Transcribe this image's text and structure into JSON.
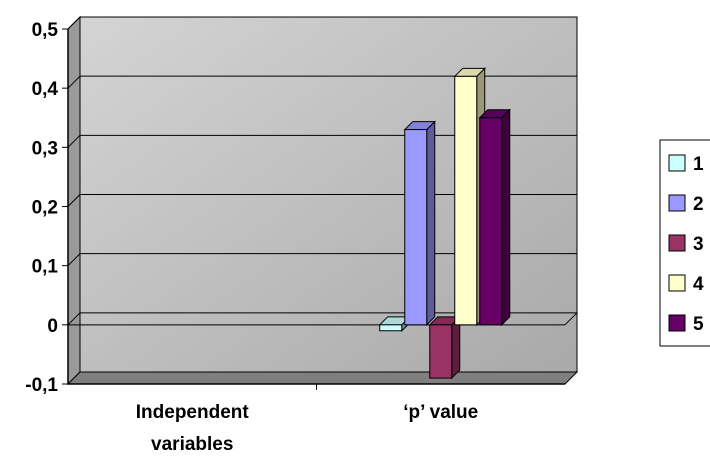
{
  "chart_data": {
    "type": "bar",
    "categories": [
      "Independent variables",
      "‘p’ value"
    ],
    "category_lines": [
      [
        "Independent",
        "variables"
      ],
      [
        "‘p’ value"
      ]
    ],
    "series": [
      {
        "name": "1",
        "values": [
          null,
          -0.01
        ],
        "color": "#ccffff"
      },
      {
        "name": "2",
        "values": [
          null,
          0.33
        ],
        "color": "#9999ff"
      },
      {
        "name": "3",
        "values": [
          null,
          -0.09
        ],
        "color": "#993366"
      },
      {
        "name": "4",
        "values": [
          null,
          0.42
        ],
        "color": "#ffffcc"
      },
      {
        "name": "5",
        "values": [
          null,
          0.35
        ],
        "color": "#660066"
      }
    ],
    "yticks": [
      "0,5",
      "0,4",
      "0,3",
      "0,2",
      "0,1",
      "0",
      "-0,1"
    ],
    "ylim": [
      -0.1,
      0.5
    ],
    "grid": true,
    "legend_position": "right",
    "wall_color": "#c0c0c0",
    "3d": true
  }
}
